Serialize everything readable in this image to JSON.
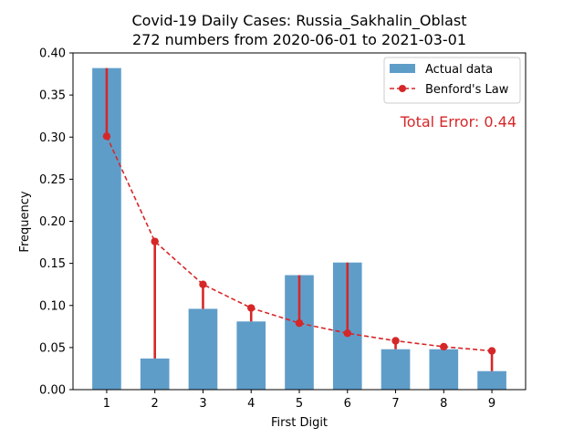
{
  "chart_data": {
    "type": "bar",
    "title": "Covid-19 Daily Cases: Russia_Sakhalin_Oblast",
    "subtitle": "272 numbers from 2020-06-01 to 2021-03-01",
    "xlabel": "First Digit",
    "ylabel": "Frequency",
    "categories": [
      "1",
      "2",
      "3",
      "4",
      "5",
      "6",
      "7",
      "8",
      "9"
    ],
    "ylim": [
      0,
      0.4
    ],
    "yticks": [
      "0.00",
      "0.05",
      "0.10",
      "0.15",
      "0.20",
      "0.25",
      "0.30",
      "0.35",
      "0.40"
    ],
    "series": [
      {
        "name": "Actual data",
        "type": "bar",
        "color": "#5f9dc9",
        "values": [
          0.382,
          0.037,
          0.096,
          0.081,
          0.136,
          0.151,
          0.048,
          0.048,
          0.022
        ]
      },
      {
        "name": "Benford's Law",
        "type": "line",
        "color": "#d62728",
        "values": [
          0.301,
          0.176,
          0.125,
          0.097,
          0.079,
          0.067,
          0.058,
          0.051,
          0.046
        ]
      }
    ],
    "legend_position": "top-right",
    "annotation": "Total Error: 0.44",
    "grid": false
  }
}
